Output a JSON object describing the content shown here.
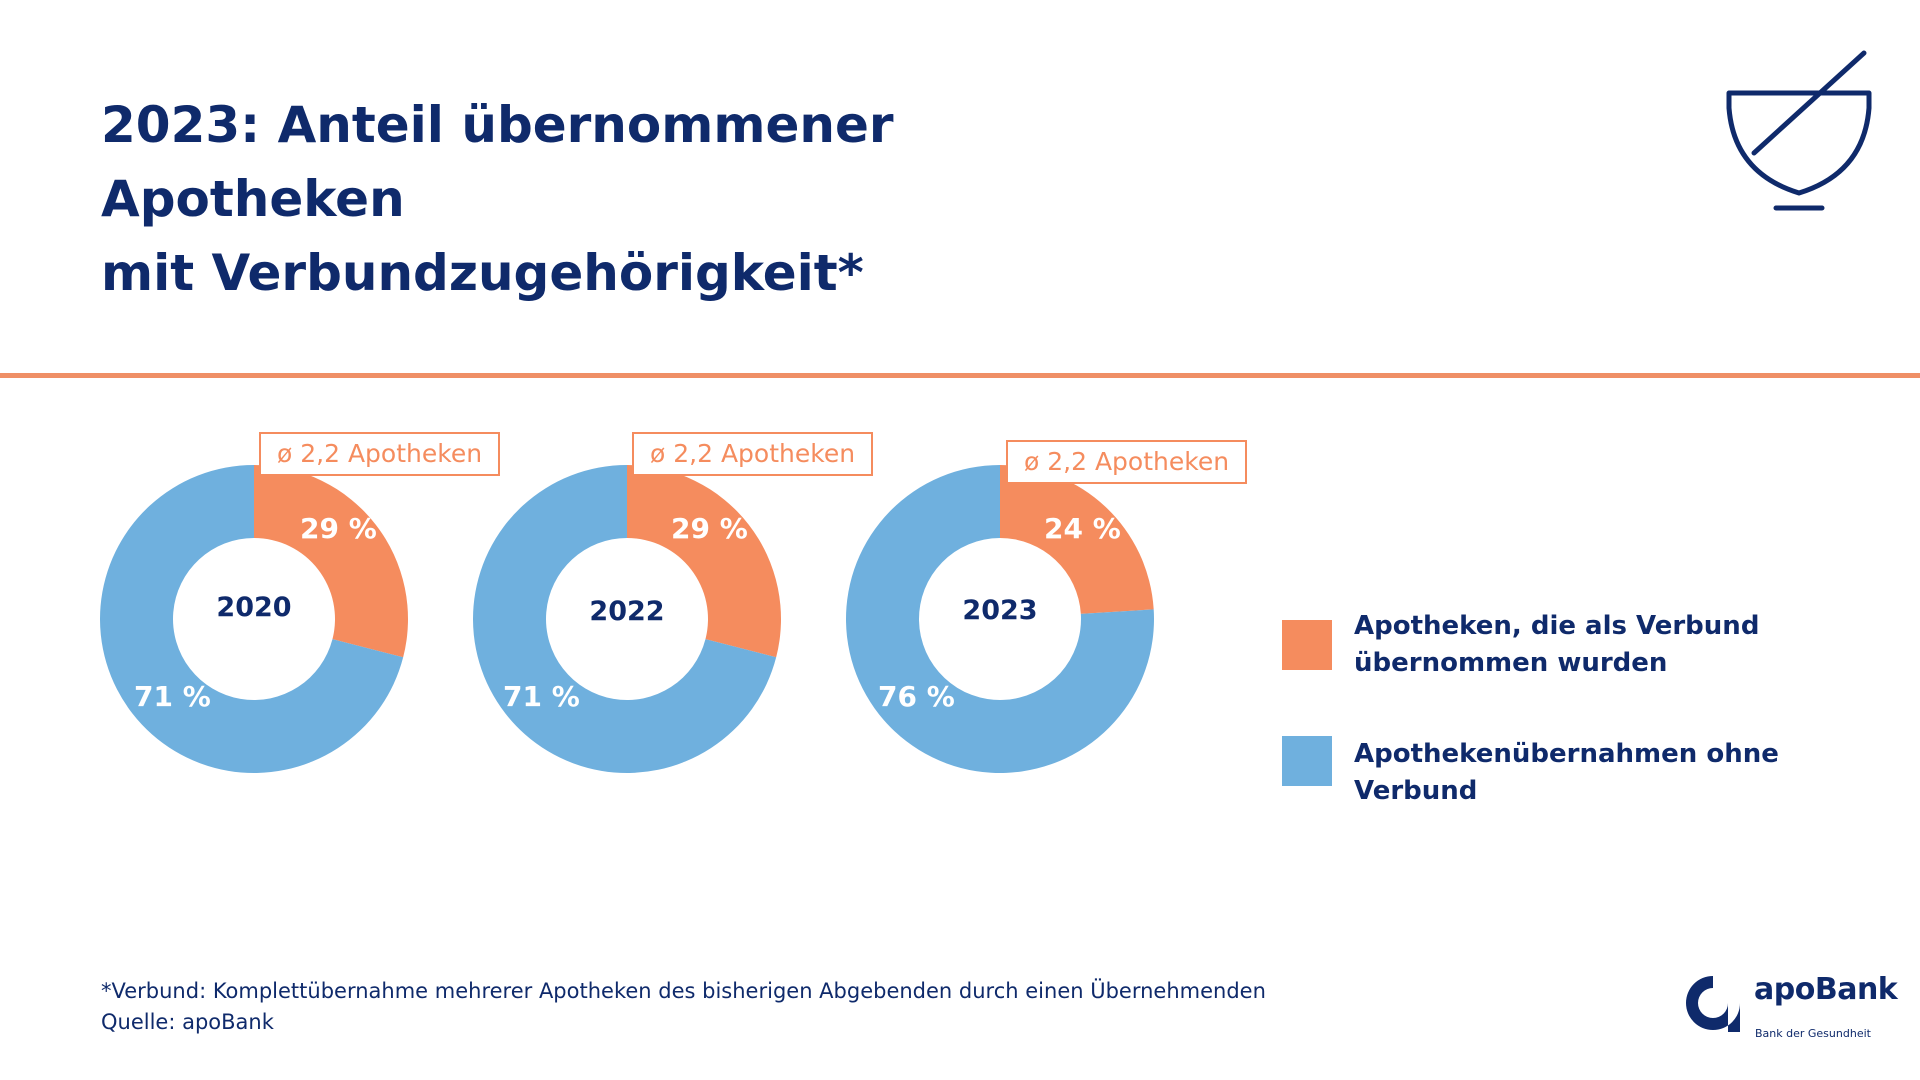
{
  "title": {
    "line1": "2023: Anteil übernommener Apotheken",
    "line2": "mit Verbundzugehörigkeit*"
  },
  "icons": {
    "header": "mortar-and-pestle-icon",
    "logo": "apobank-logo-icon"
  },
  "colors": {
    "primary_text": "#0f2a6b",
    "accent_orange": "#f58c5e",
    "accent_blue": "#6fb0de",
    "divider": "#ef8f66"
  },
  "chart_data": [
    {
      "type": "pie",
      "center_label": "2020",
      "badge": "ø 2,2 Apotheken",
      "slices": [
        {
          "label": "29 %",
          "value": 29,
          "color": "#f58c5e"
        },
        {
          "label": "71 %",
          "value": 71,
          "color": "#6fb0de"
        }
      ]
    },
    {
      "type": "pie",
      "center_label": "2022",
      "badge": "ø 2,2 Apotheken",
      "slices": [
        {
          "label": "29 %",
          "value": 29,
          "color": "#f58c5e"
        },
        {
          "label": "71 %",
          "value": 71,
          "color": "#6fb0de"
        }
      ]
    },
    {
      "type": "pie",
      "center_label": "2023",
      "badge": "ø 2,2 Apotheken",
      "slices": [
        {
          "label": "24 %",
          "value": 24,
          "color": "#f58c5e"
        },
        {
          "label": "76 %",
          "value": 76,
          "color": "#6fb0de"
        }
      ]
    }
  ],
  "legend": [
    {
      "label": "Apotheken, die als Verbund übernommen wurden",
      "color": "#f58c5e"
    },
    {
      "label": "Apothekenübernahmen ohne Verbund",
      "color": "#6fb0de"
    }
  ],
  "footnote": {
    "line1": "*Verbund: Komplettübernahme mehrerer Apotheken des bisherigen Abgebenden durch einen Übernehmenden",
    "line2": "Quelle: apoBank"
  },
  "logo": {
    "name": "apoBank",
    "tagline": "Bank der Gesundheit"
  }
}
